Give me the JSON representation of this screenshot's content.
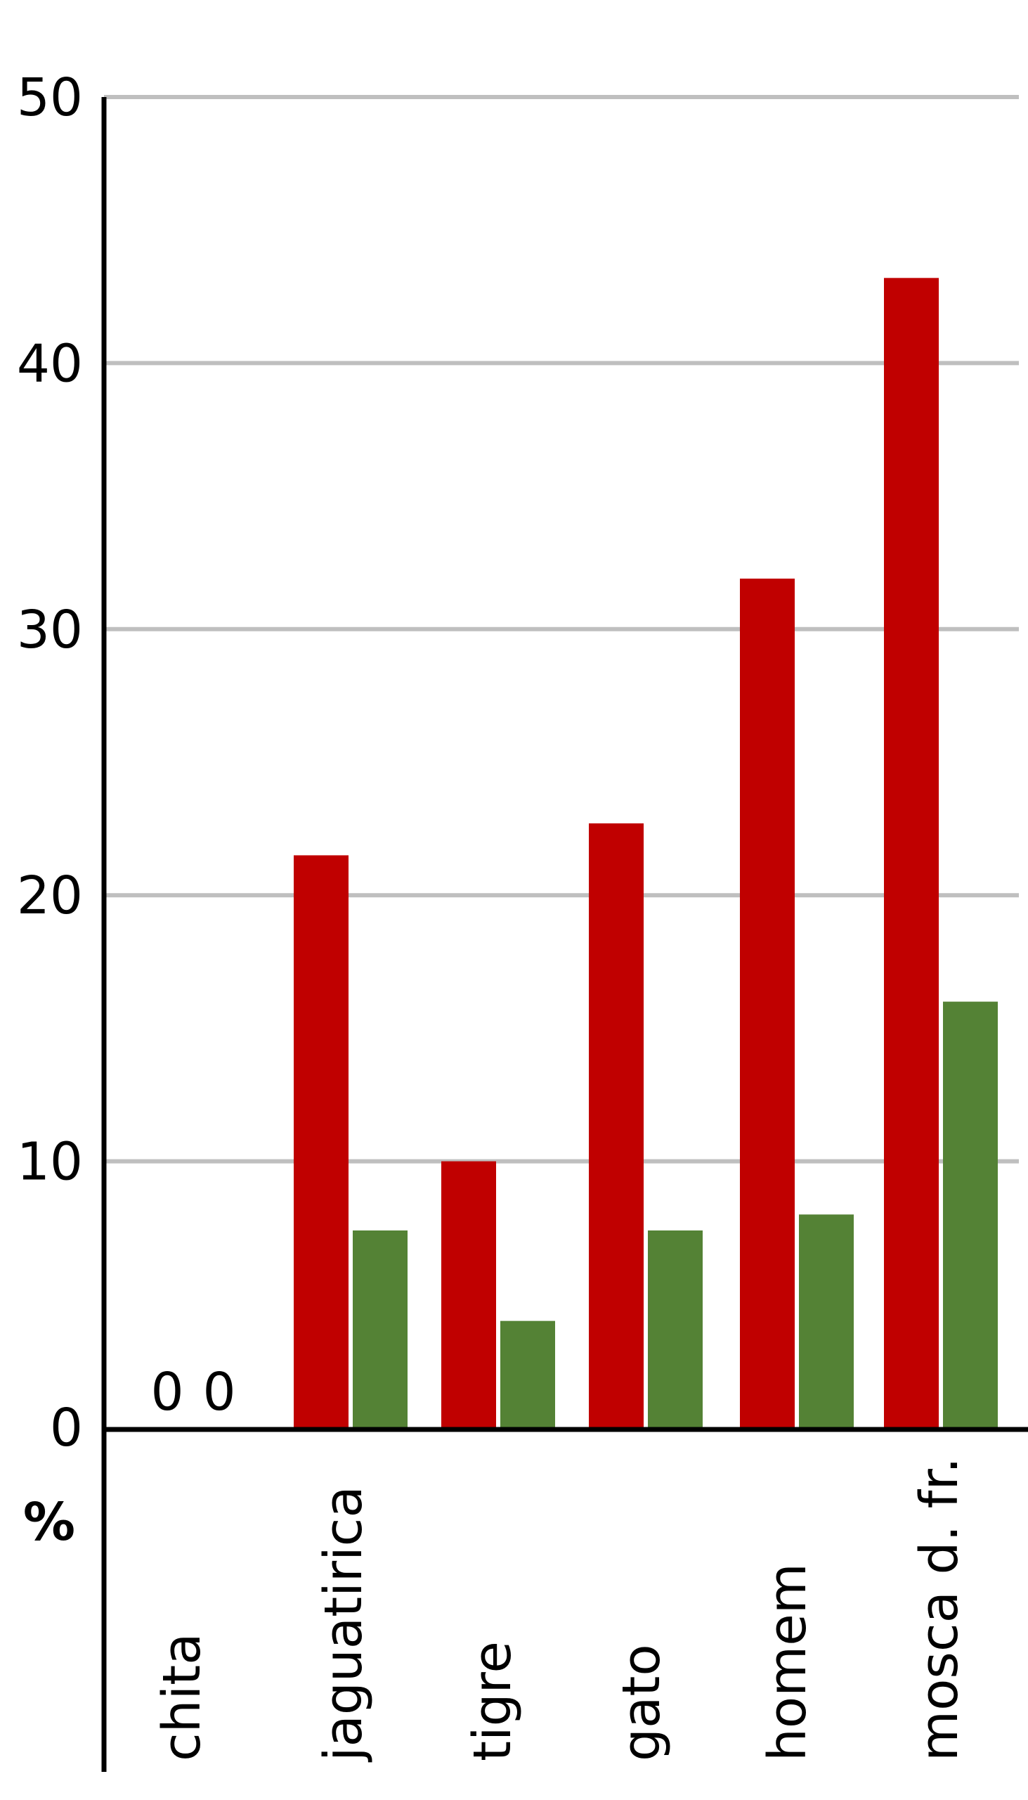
{
  "chart_data": {
    "type": "bar",
    "categories": [
      "chita",
      "jaguatirica",
      "tigre",
      "gato",
      "homem",
      "mosca d. fr."
    ],
    "series": [
      {
        "values": [
          0,
          21.5,
          10.0,
          22.7,
          31.9,
          43.2
        ]
      },
      {
        "values": [
          0,
          7.4,
          4.0,
          7.4,
          8.0,
          16.0
        ]
      }
    ],
    "ylabel": "%",
    "ylim": [
      0,
      50
    ],
    "yticks": [
      "0",
      "10",
      "20",
      "30",
      "40",
      "50"
    ],
    "grid": true,
    "zero_labels": [
      "0",
      "0"
    ],
    "colors": {
      "series_0": "#c00000",
      "series_1": "#548235",
      "grid": "#bfbfbf",
      "axis": "#000000"
    }
  }
}
